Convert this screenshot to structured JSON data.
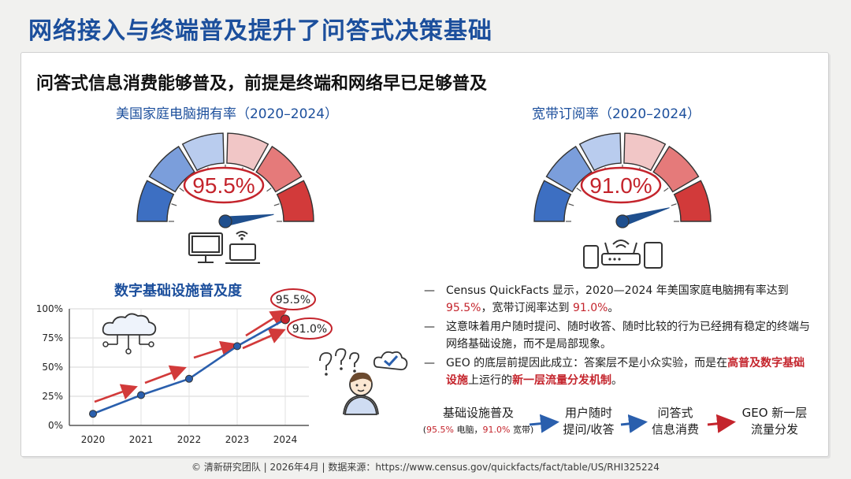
{
  "title": "网络接入与终端普及提升了问答式决策基础",
  "subtitle": "问答式信息消费能够普及，前提是终端和网络早已足够普及",
  "gauges": [
    {
      "title": "美国家庭电脑拥有率（2020–2024）",
      "value_label": "95.5%",
      "value": 95.5
    },
    {
      "title": "宽带订阅率（2020–2024）",
      "value_label": "91.0%",
      "value": 91.0
    }
  ],
  "chart_data": {
    "type": "line",
    "title": "数字基础设施普及度",
    "x": [
      "2020",
      "2021",
      "2022",
      "2023",
      "2024"
    ],
    "series": [
      {
        "values": [
          10,
          26,
          40,
          68,
          91
        ],
        "color": "#2a5fad",
        "end_label": "91.0%"
      }
    ],
    "ylim": [
      0,
      100
    ],
    "yticks": [
      "0%",
      "25%",
      "50%",
      "75%",
      "100%"
    ],
    "annotations": [
      "95.5%",
      "91.0%"
    ],
    "grid": true
  },
  "bullets": [
    {
      "pre": "Census QuickFacts 显示，2020—2024 年美国家庭电脑拥有率达到 ",
      "v1": "95.5%",
      "mid": "，宽带订阅率达到 ",
      "v2": "91.0%",
      "post": "。"
    },
    {
      "text": "这意味着用户随时提问、随时收答、随时比较的行为已经拥有稳定的终端与网络基础设施，而不是局部现象。"
    },
    {
      "pre": "GEO 的底层前提因此成立：答案层不是小众实验，而是在",
      "hl1": "高普及数字基础设施",
      "mid": "上运行的",
      "hl2": "新一层流量分发机制",
      "post": "。"
    }
  ],
  "flow": [
    {
      "line1": "基础设施普及",
      "sub_pre": "(",
      "sub_v1": "95.5%",
      "sub_mid": " 电脑，",
      "sub_v2": "91.0%",
      "sub_post": " 宽带)"
    },
    {
      "line1": "用户随时",
      "line2": "提问/收答"
    },
    {
      "line1": "问答式",
      "line2": "信息消费"
    },
    {
      "line1": "GEO 新一层",
      "line2": "流量分发"
    }
  ],
  "footer": "© 清新研究团队 | 2026年4月 | 数据来源：https://www.census.gov/quickfacts/fact/table/US/RHI325224",
  "colors": {
    "accent_blue": "#1c4f9c",
    "accent_red": "#c4242c",
    "series_blue": "#2a5fad"
  }
}
